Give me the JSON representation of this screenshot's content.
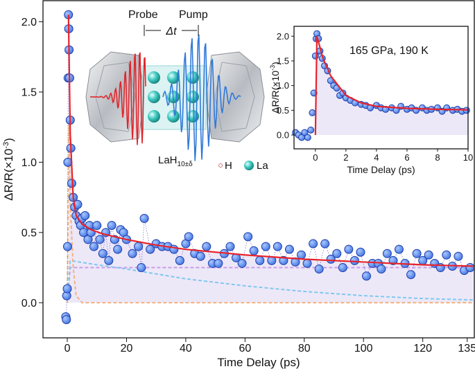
{
  "chart_data": [
    {
      "type": "scatter",
      "xlabel": "Time Delay (ps)",
      "ylabel": "ΔR/R(×10",
      "ylabel_sup": "-3",
      "ylabel_end": ")",
      "xlim": [
        -8.2,
        137.4
      ],
      "ylim": [
        -0.25,
        2.15
      ],
      "xticks": [
        0,
        20,
        40,
        60,
        80,
        100,
        120,
        135
      ],
      "yticks": [
        {
          "value": 0,
          "label": "0.0"
        },
        {
          "value": 0.5,
          "label": "0.5"
        },
        {
          "value": 1,
          "label": "1.0"
        },
        {
          "value": 1.5,
          "label": "1.5"
        },
        {
          "value": 2,
          "label": "2.0"
        }
      ],
      "series": [
        {
          "kind": "points",
          "color": "#4f86ef",
          "line": "dotted",
          "x": [
            -0.5,
            -0.3,
            -0.2,
            0,
            0.1,
            0.2,
            0.3,
            0.4,
            0.5,
            0.6,
            0.8,
            1,
            1.2,
            1.5,
            2,
            2.5,
            3,
            3.5,
            4,
            4.5,
            5,
            5.5,
            6,
            7,
            7.5,
            8,
            9,
            10,
            11,
            12,
            13,
            14,
            15,
            16,
            17,
            18,
            19,
            20,
            22,
            24,
            25,
            26,
            28,
            30,
            32,
            34,
            36,
            38,
            40,
            41,
            43,
            45,
            47,
            49,
            51,
            53,
            55,
            57,
            59,
            61,
            63,
            65,
            67,
            69,
            71,
            73,
            75,
            77,
            79,
            81,
            83,
            85,
            87,
            89,
            91,
            93,
            95,
            97,
            99,
            101,
            103,
            105,
            106,
            108,
            110,
            112,
            114,
            116,
            118,
            120,
            122,
            124,
            126,
            128,
            130,
            132,
            134,
            136
          ],
          "values": [
            -0.1,
            -0.12,
            0.05,
            0.1,
            0.4,
            1.0,
            1.6,
            2.05,
            1.95,
            1.8,
            1.6,
            1.3,
            1.1,
            0.85,
            0.75,
            0.68,
            0.62,
            0.7,
            0.58,
            0.55,
            0.6,
            0.5,
            0.62,
            0.45,
            0.55,
            0.5,
            0.4,
            0.55,
            0.45,
            0.35,
            0.5,
            0.3,
            0.55,
            0.45,
            0.38,
            0.52,
            0.5,
            0.45,
            0.35,
            0.4,
            0.25,
            0.6,
            0.38,
            0.42,
            0.4,
            0.4,
            0.38,
            0.3,
            0.42,
            0.47,
            0.35,
            0.33,
            0.4,
            0.28,
            0.28,
            0.35,
            0.4,
            0.32,
            0.28,
            0.47,
            0.37,
            0.3,
            0.4,
            0.3,
            0.4,
            0.3,
            0.38,
            0.29,
            0.34,
            0.28,
            0.42,
            0.24,
            0.42,
            0.31,
            0.35,
            0.25,
            0.38,
            0.3,
            0.36,
            0.19,
            0.28,
            0.28,
            0.24,
            0.35,
            0.3,
            0.38,
            0.28,
            0.2,
            0.35,
            0.3,
            0.34,
            0.28,
            0.25,
            0.34,
            0.26,
            0.33,
            0.23,
            0.25
          ]
        },
        {
          "kind": "fit",
          "color": "#e8232a",
          "area_color": "#e9e2f6",
          "x": [
            0.4,
            1,
            2,
            3,
            5,
            8,
            12,
            20,
            30,
            40,
            60,
            80,
            100,
            120,
            137
          ],
          "values": [
            2.05,
            1.2,
            0.75,
            0.62,
            0.56,
            0.52,
            0.49,
            0.45,
            0.41,
            0.38,
            0.34,
            0.31,
            0.29,
            0.27,
            0.26
          ]
        },
        {
          "kind": "fit",
          "color": "#c99be8",
          "dash": true,
          "x": [
            0,
            1,
            137
          ],
          "values": [
            0,
            0.25,
            0.25
          ]
        },
        {
          "kind": "fit",
          "color": "#7ec8ef",
          "dash": true,
          "x": [
            0,
            1,
            10,
            20,
            40,
            60,
            80,
            100,
            120,
            137
          ],
          "values": [
            0,
            0.3,
            0.27,
            0.24,
            0.17,
            0.12,
            0.08,
            0.05,
            0.03,
            0.02
          ]
        },
        {
          "kind": "fit",
          "color": "#f5b07a",
          "dash": true,
          "x": [
            0,
            0.5,
            1,
            2,
            3,
            5,
            137
          ],
          "values": [
            0,
            1.3,
            0.7,
            0.25,
            0.05,
            0,
            0
          ]
        }
      ]
    },
    {
      "type": "scatter",
      "xlabel": "Time Delay (ps)",
      "ylabel": "ΔR/R(×10",
      "ylabel_sup": "-3",
      "ylabel_end": ")",
      "annotation": "165 GPa, 190 K",
      "xlim": [
        -1.4,
        10
      ],
      "ylim": [
        -0.28,
        2.2
      ],
      "xticks": [
        0,
        2,
        4,
        6,
        8,
        10
      ],
      "yticks": [
        {
          "value": 0,
          "label": "0.0"
        },
        {
          "value": 0.5,
          "label": "0.5"
        },
        {
          "value": 1,
          "label": "1.0"
        },
        {
          "value": 1.5,
          "label": "1.5"
        },
        {
          "value": 2,
          "label": "2.0"
        }
      ],
      "series": [
        {
          "kind": "points",
          "color": "#4f86ef",
          "x": [
            -1.3,
            -1.1,
            -0.9,
            -0.7,
            -0.5,
            -0.3,
            -0.2,
            -0.1,
            0,
            0.05,
            0.1,
            0.2,
            0.3,
            0.45,
            0.6,
            0.8,
            1,
            1.2,
            1.4,
            1.6,
            1.8,
            2,
            2.3,
            2.6,
            3,
            3.3,
            3.6,
            4,
            4.3,
            4.6,
            5,
            5.3,
            5.6,
            6,
            6.3,
            6.6,
            7,
            7.3,
            7.6,
            8,
            8.3,
            8.6,
            9,
            9.3,
            9.6,
            9.9
          ],
          "values": [
            0.05,
            0,
            -0.05,
            0.05,
            -0.05,
            0.1,
            0.45,
            0.85,
            1.6,
            1.95,
            2.05,
            1.95,
            1.7,
            1.55,
            1.4,
            1.3,
            1.1,
            1.0,
            0.95,
            0.8,
            0.85,
            0.75,
            0.7,
            0.65,
            0.62,
            0.6,
            0.55,
            0.6,
            0.55,
            0.52,
            0.55,
            0.5,
            0.58,
            0.52,
            0.55,
            0.5,
            0.55,
            0.5,
            0.52,
            0.55,
            0.48,
            0.55,
            0.5,
            0.52,
            0.48,
            0.5
          ]
        },
        {
          "kind": "fit",
          "color": "#e8232a",
          "area_color": "#e9e2f6",
          "x": [
            0,
            0.1,
            0.5,
            1,
            2,
            3,
            4,
            6,
            8,
            10
          ],
          "values": [
            0,
            2.0,
            1.55,
            1.2,
            0.8,
            0.65,
            0.58,
            0.54,
            0.52,
            0.51
          ]
        }
      ]
    }
  ],
  "illustration": {
    "probe": "Probe",
    "pump": "Pump",
    "delay": "Δt",
    "compound": "LaH",
    "compound_subscript": "10±δ",
    "h_label": "H",
    "la_label": "La"
  }
}
